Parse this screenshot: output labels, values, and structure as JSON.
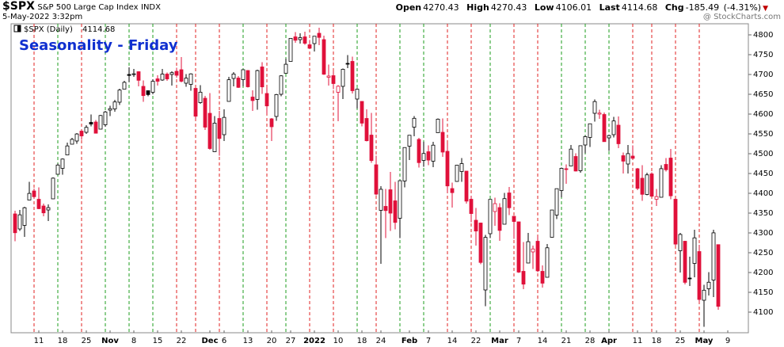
{
  "chart_data": {
    "type": "candlestick",
    "title": "Seasonality - Friday",
    "header": {
      "symbol": "$SPX",
      "name": "S&P 500 Large Cap Index",
      "exchange": "INDX",
      "timestamp": "5-May-2022 3:32pm",
      "labels": [
        "Open",
        "High",
        "Low",
        "Last",
        "Chg"
      ],
      "change": -185.49,
      "change_pct": {
        "value": -4.31,
        "label": "(-4.31%)"
      },
      "credit": "@ StockCharts.com",
      "legend": "$SPX (Daily)"
    },
    "categories": [
      null,
      null,
      null,
      null,
      null,
      "11",
      null,
      null,
      null,
      null,
      "18",
      null,
      null,
      null,
      null,
      "25",
      null,
      null,
      null,
      null,
      "Nov",
      null,
      null,
      null,
      null,
      "8",
      null,
      null,
      null,
      null,
      "15",
      null,
      null,
      null,
      null,
      "22",
      null,
      null,
      null,
      null,
      null,
      "Dec",
      null,
      null,
      "6",
      null,
      null,
      null,
      null,
      "13",
      null,
      null,
      null,
      null,
      "20",
      null,
      null,
      null,
      "27",
      null,
      null,
      null,
      null,
      "2022",
      null,
      null,
      null,
      null,
      "10",
      null,
      null,
      null,
      null,
      "18",
      null,
      null,
      null,
      "24",
      null,
      null,
      null,
      null,
      null,
      "Feb",
      null,
      null,
      null,
      "7",
      null,
      null,
      null,
      null,
      "14",
      null,
      null,
      null,
      null,
      "22",
      null,
      null,
      null,
      null,
      "Mar",
      null,
      null,
      null,
      "7",
      null,
      null,
      null,
      null,
      "14",
      null,
      null,
      null,
      null,
      "21",
      null,
      null,
      null,
      null,
      "28",
      null,
      null,
      null,
      "Apr",
      null,
      null,
      null,
      null,
      null,
      "11",
      null,
      null,
      null,
      "18",
      null,
      null,
      null,
      null,
      "25",
      null,
      null,
      null,
      null,
      "May",
      null,
      null,
      null,
      null,
      "9"
    ],
    "open": [
      4348,
      4310,
      4319,
      4383,
      4406,
      4385,
      4368,
      4358,
      4386,
      4448,
      4463,
      4497,
      4524,
      4532,
      4557,
      4554,
      4579,
      4580,
      4562,
      4573,
      4610,
      4613,
      4630,
      4663,
      4700,
      4701,
      4707,
      4670,
      4659,
      4655,
      4689,
      4686,
      4701,
      4700,
      4708,
      4712,
      4678,
      4675,
      4665,
      4629,
      4640,
      4602,
      4505,
      4589,
      4548,
      4632,
      4690,
      4691,
      4687,
      4710,
      4643,
      4637,
      4719,
      4652,
      4588,
      4594,
      4650,
      4703,
      4733,
      4795,
      4788,
      4795,
      4775,
      4778,
      4804,
      4788,
      4693,
      4697,
      4655,
      4670,
      4728,
      4733,
      4638,
      4632,
      4589,
      4547,
      4472,
      4357,
      4367,
      4409,
      4381,
      4337,
      4431,
      4519,
      4567,
      4536,
      4483,
      4505,
      4481,
      4553,
      4554,
      4506,
      4412,
      4430,
      4455,
      4456,
      4385,
      4332,
      4325,
      4156,
      4298,
      4354,
      4364,
      4322,
      4401,
      4342,
      4328,
      4203,
      4224,
      4252,
      4279,
      4203,
      4188,
      4289,
      4345,
      4407,
      4462,
      4469,
      4493,
      4457,
      4522,
      4541,
      4602,
      4600,
      4599,
      4540,
      4548,
      4572,
      4495,
      4474,
      4494,
      4462,
      4438,
      4397,
      4449,
      4385,
      4390,
      4473,
      4489,
      4385,
      4255,
      4279,
      4186,
      4223,
      4253,
      4130,
      4159,
      4181,
      4270.43,
      null,
      null
    ],
    "high": [
      4356,
      4358,
      4366,
      4429,
      4412,
      4415,
      4374,
      4372,
      4440,
      4475,
      4488,
      4528,
      4540,
      4552,
      4560,
      4572,
      4599,
      4585,
      4598,
      4608,
      4621,
      4636,
      4664,
      4684,
      4718,
      4714,
      4708,
      4685,
      4659,
      4688,
      4698,
      4714,
      4705,
      4708,
      4717,
      4744,
      4701,
      4703,
      4665,
      4673,
      4646,
      4653,
      4595,
      4608,
      4612,
      4694,
      4706,
      4696,
      4713,
      4711,
      4660,
      4712,
      4731,
      4666,
      4590,
      4651,
      4698,
      4740,
      4791,
      4807,
      4804,
      4808,
      4787,
      4797,
      4818,
      4798,
      4725,
      4708,
      4673,
      4715,
      4749,
      4745,
      4665,
      4632,
      4612,
      4603,
      4495,
      4418,
      4411,
      4454,
      4429,
      4433,
      4516,
      4546,
      4595,
      4540,
      4530,
      4521,
      4530,
      4589,
      4589,
      4527,
      4427,
      4472,
      4489,
      4456,
      4394,
      4363,
      4326,
      4295,
      4385,
      4389,
      4375,
      4401,
      4416,
      4343,
      4328,
      4277,
      4300,
      4268,
      4292,
      4218,
      4272,
      4358,
      4412,
      4465,
      4473,
      4522,
      4501,
      4520,
      4546,
      4576,
      4637,
      4611,
      4604,
      4548,
      4593,
      4594,
      4503,
      4522,
      4521,
      4464,
      4471,
      4452,
      4453,
      4411,
      4471,
      4489,
      4512,
      4386,
      4300,
      4280,
      4240,
      4308,
      4270,
      4169,
      4201,
      4308,
      4270.43,
      null,
      null
    ],
    "low": [
      4279,
      4305,
      4290,
      4383,
      4386,
      4360,
      4342,
      4330,
      4386,
      4448,
      4447,
      4497,
      4524,
      4525,
      4535,
      4550,
      4569,
      4551,
      4562,
      4568,
      4595,
      4606,
      4623,
      4663,
      4681,
      4694,
      4670,
      4631,
      4645,
      4650,
      4672,
      4684,
      4684,
      4672,
      4692,
      4680,
      4669,
      4659,
      4586,
      4626,
      4560,
      4510,
      4504,
      4495,
      4532,
      4632,
      4670,
      4666,
      4670,
      4667,
      4608,
      4611,
      4651,
      4600,
      4532,
      4583,
      4645,
      4703,
      4733,
      4780,
      4778,
      4775,
      4765,
      4758,
      4774,
      4699,
      4672,
      4663,
      4582,
      4638,
      4716,
      4652,
      4614,
      4569,
      4531,
      4477,
      4395,
      4222,
      4287,
      4305,
      4309,
      4287,
      4415,
      4484,
      4544,
      4465,
      4467,
      4471,
      4466,
      4553,
      4492,
      4402,
      4364,
      4429,
      4429,
      4374,
      4327,
      4268,
      4221,
      4115,
      4287,
      4318,
      4280,
      4322,
      4345,
      4285,
      4199,
      4158,
      4224,
      4209,
      4201,
      4162,
      4188,
      4288,
      4335,
      4390,
      4424,
      4469,
      4455,
      4452,
      4501,
      4517,
      4581,
      4588,
      4530,
      4507,
      4541,
      4514,
      4450,
      4450,
      4485,
      4408,
      4381,
      4395,
      4392,
      4368,
      4390,
      4455,
      4385,
      4267,
      4200,
      4170,
      4166,
      4188,
      4125,
      4063,
      4142,
      4138,
      4106.01,
      null,
      null
    ],
    "close": [
      4300.46,
      4345.72,
      4363.55,
      4399.76,
      4391.34,
      4361.19,
      4350.65,
      4363.8,
      4438.26,
      4471.37,
      4486.46,
      4519.63,
      4536.19,
      4549.78,
      4544.9,
      4566.48,
      4574.79,
      4551.68,
      4596.42,
      4605.38,
      4613.67,
      4630.65,
      4660.57,
      4680.06,
      4697.53,
      4701.7,
      4685.25,
      4646.71,
      4649.27,
      4682.85,
      4682.8,
      4700.9,
      4688.67,
      4704.54,
      4697.96,
      4682.94,
      4690.7,
      4701.46,
      4594.62,
      4655.27,
      4567,
      4513.04,
      4577.1,
      4538.43,
      4591.67,
      4686.75,
      4701.21,
      4667.45,
      4712.02,
      4668.97,
      4634.09,
      4709.85,
      4668.67,
      4620.64,
      4568.02,
      4649.23,
      4696.56,
      4725.79,
      4791.19,
      4786.35,
      4793.06,
      4778.73,
      4766.18,
      4796.56,
      4793.54,
      4700.58,
      4696.05,
      4677.03,
      4670.29,
      4713.07,
      4726.35,
      4659.03,
      4662.85,
      4577.11,
      4532.76,
      4482.73,
      4397.94,
      4410.13,
      4356.45,
      4349.93,
      4326.51,
      4431.85,
      4515.55,
      4546.54,
      4589.38,
      4477.44,
      4500.53,
      4483.87,
      4521.54,
      4587.18,
      4504.08,
      4418.64,
      4401.67,
      4471.07,
      4475.01,
      4380.26,
      4348.87,
      4304.76,
      4225.5,
      4288.7,
      4384.65,
      4373.94,
      4306.26,
      4386.54,
      4363.49,
      4328.87,
      4201.09,
      4170.7,
      4277.88,
      4259.52,
      4204.31,
      4173.11,
      4262.45,
      4357.86,
      4411.67,
      4463.12,
      4461.18,
      4511.61,
      4456.24,
      4520.16,
      4543.06,
      4575.52,
      4631.6,
      4602.45,
      4530.41,
      4545.86,
      4582.64,
      4525.12,
      4481.15,
      4500.21,
      4488.28,
      4412.53,
      4397.45,
      4446.59,
      4392.59,
      4391.69,
      4462.21,
      4459.45,
      4393.66,
      4271.78,
      4296.12,
      4175.2,
      4183.96,
      4287.5,
      4131.93,
      4155.38,
      4175.48,
      4300.17,
      4114.68,
      null,
      null
    ],
    "up_color": "#000000",
    "down_color": "#e0103a",
    "friday_up_color": "#1e9e1e",
    "friday_down_color": "#e02020",
    "title_color": "#1030d0",
    "ylim": [
      4048,
      4828
    ],
    "yticks": [
      4100,
      4150,
      4200,
      4250,
      4300,
      4350,
      4400,
      4450,
      4500,
      4550,
      4600,
      4650,
      4700,
      4750,
      4800
    ],
    "grid": false
  }
}
